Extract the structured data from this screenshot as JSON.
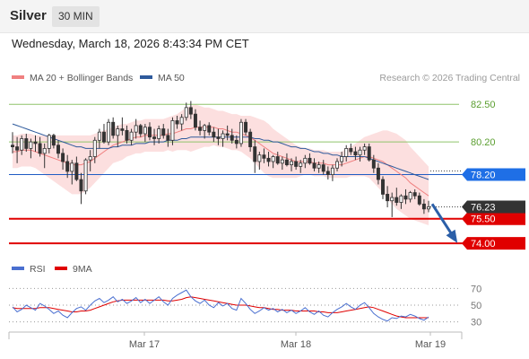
{
  "header": {
    "symbol": "Silver",
    "timeframe": "30 MIN",
    "datetime": "Wednesday, March 18, 2026 8:43:34 PM CET"
  },
  "chart_data": {
    "type": "candlestick",
    "legend": [
      {
        "name": "MA 20 + Bollinger Bands",
        "color": "#f08080"
      },
      {
        "name": "MA 50",
        "color": "#2e5a9c"
      }
    ],
    "source_text": "Research © 2026 Trading Central",
    "ylim": [
      73.4,
      83.5
    ],
    "x_labels": [
      "Mar 17",
      "Mar 18",
      "Mar 19"
    ],
    "levels": [
      {
        "value": 82.5,
        "label": "82.50",
        "color": "#8fc46a",
        "style": "resistance"
      },
      {
        "value": 80.2,
        "label": "80.20",
        "color": "#8fc46a",
        "style": "resistance"
      },
      {
        "value": 78.2,
        "label": "78.20",
        "color": "#1f5cc4",
        "style": "pivot"
      },
      {
        "value": 75.5,
        "label": "75.50",
        "color": "#e00000",
        "style": "support"
      },
      {
        "value": 74.0,
        "label": "74.00",
        "color": "#e00000",
        "style": "support"
      }
    ],
    "last_price": {
      "value": 76.23,
      "label": "76.23"
    },
    "arrow": {
      "from": 76.4,
      "to": 74.2,
      "direction": "down"
    },
    "candles": [
      [
        80,
        80.8,
        79.5,
        79.9
      ],
      [
        79.9,
        80.5,
        78.9,
        79.7
      ],
      [
        79.7,
        80.6,
        79.4,
        80.4
      ],
      [
        80.4,
        80.7,
        79.6,
        79.8
      ],
      [
        79.8,
        80.4,
        79.2,
        80.2
      ],
      [
        80.2,
        80.6,
        79.6,
        80.1
      ],
      [
        80.1,
        80.5,
        79.3,
        79.5
      ],
      [
        79.5,
        80.1,
        78.6,
        79.8
      ],
      [
        79.8,
        80.7,
        79.5,
        80.6
      ],
      [
        80.6,
        80.7,
        79.8,
        80.0
      ],
      [
        80.0,
        80.3,
        79.2,
        79.5
      ],
      [
        79.5,
        79.8,
        78.5,
        79.0
      ],
      [
        79,
        79.4,
        78.0,
        78.4
      ],
      [
        78.4,
        79.1,
        77.6,
        78.9
      ],
      [
        78.9,
        79.3,
        77.8,
        77.9
      ],
      [
        77.9,
        78.3,
        76.4,
        77.2
      ],
      [
        77.2,
        79.2,
        77.0,
        79.1
      ],
      [
        79.1,
        79.7,
        78.4,
        79.3
      ],
      [
        79.3,
        80.5,
        78.9,
        80.3
      ],
      [
        80.3,
        81.0,
        79.8,
        80.8
      ],
      [
        80.8,
        81.3,
        80.1,
        80.2
      ],
      [
        80.2,
        81.6,
        80.0,
        81.4
      ],
      [
        81.4,
        81.7,
        80.4,
        80.6
      ],
      [
        80.6,
        81.2,
        79.9,
        81.0
      ],
      [
        81.0,
        81.7,
        80.6,
        80.9
      ],
      [
        80.9,
        81.2,
        80.1,
        80.3
      ],
      [
        80.3,
        81.0,
        80.0,
        80.8
      ],
      [
        80.8,
        81.6,
        80.4,
        81.2
      ],
      [
        81.2,
        81.3,
        80.5,
        80.7
      ],
      [
        80.7,
        81.3,
        80.2,
        81.1
      ],
      [
        81.1,
        81.4,
        80.3,
        80.5
      ],
      [
        80.5,
        81.0,
        80.0,
        80.4
      ],
      [
        80.4,
        81.2,
        80.1,
        81.0
      ],
      [
        81.0,
        81.3,
        80.4,
        80.6
      ],
      [
        80.6,
        81.0,
        79.9,
        80.3
      ],
      [
        80.3,
        81.7,
        80.0,
        81.5
      ],
      [
        81.5,
        81.8,
        81.0,
        81.3
      ],
      [
        81.3,
        81.9,
        80.9,
        81.7
      ],
      [
        81.7,
        82.6,
        81.5,
        82.3
      ],
      [
        82.3,
        82.7,
        81.6,
        81.9
      ],
      [
        81.9,
        82.2,
        80.9,
        81.1
      ],
      [
        81.1,
        81.5,
        80.6,
        80.9
      ],
      [
        80.9,
        81.3,
        80.4,
        81.2
      ],
      [
        81.2,
        81.4,
        80.6,
        80.8
      ],
      [
        80.8,
        81.1,
        80.2,
        80.5
      ],
      [
        80.5,
        81.0,
        80.0,
        80.4
      ],
      [
        80.4,
        80.9,
        79.9,
        80.7
      ],
      [
        80.7,
        81.2,
        80.3,
        80.6
      ],
      [
        80.6,
        81.0,
        80.1,
        80.3
      ],
      [
        80.3,
        80.6,
        79.8,
        80.1
      ],
      [
        80.1,
        81.6,
        79.9,
        81.4
      ],
      [
        81.4,
        81.6,
        80.6,
        80.8
      ],
      [
        80.8,
        81.0,
        79.6,
        79.9
      ],
      [
        79.9,
        80.3,
        78.3,
        79.0
      ],
      [
        79.0,
        79.6,
        78.5,
        79.4
      ],
      [
        79.4,
        79.8,
        78.9,
        79.2
      ],
      [
        79.2,
        79.6,
        78.7,
        79.0
      ],
      [
        79,
        79.4,
        78.6,
        79.3
      ],
      [
        79.3,
        79.6,
        78.8,
        78.9
      ],
      [
        78.9,
        79.3,
        78.5,
        79.1
      ],
      [
        79.1,
        79.5,
        78.7,
        78.8
      ],
      [
        78.8,
        79.2,
        78.4,
        79.0
      ],
      [
        79.0,
        79.3,
        78.5,
        78.7
      ],
      [
        78.7,
        79.1,
        78.3,
        78.9
      ],
      [
        78.9,
        79.4,
        78.6,
        79.2
      ],
      [
        79.2,
        79.5,
        78.8,
        78.9
      ],
      [
        78.9,
        79.2,
        78.4,
        78.6
      ],
      [
        78.6,
        79.0,
        78.3,
        78.8
      ],
      [
        78.8,
        79.1,
        78.2,
        78.4
      ],
      [
        78.4,
        78.7,
        77.9,
        78.2
      ],
      [
        78.2,
        78.8,
        77.8,
        78.6
      ],
      [
        78.6,
        79.2,
        78.4,
        79.0
      ],
      [
        79,
        79.6,
        78.7,
        79.3
      ],
      [
        79.3,
        80.0,
        79.0,
        79.8
      ],
      [
        79.8,
        80.1,
        79.4,
        79.6
      ],
      [
        79.6,
        79.9,
        79.1,
        79.4
      ],
      [
        79.4,
        79.9,
        79.0,
        79.7
      ],
      [
        79.7,
        80.1,
        79.4,
        79.9
      ],
      [
        79.9,
        80.1,
        79.0,
        79.1
      ],
      [
        79.1,
        79.4,
        78.3,
        78.6
      ],
      [
        78.6,
        78.9,
        77.6,
        77.9
      ],
      [
        77.9,
        78.1,
        76.7,
        77.0
      ],
      [
        77.0,
        77.5,
        76.2,
        76.6
      ],
      [
        76.6,
        77.1,
        75.6,
        76.8
      ],
      [
        76.8,
        77.4,
        76.3,
        76.5
      ],
      [
        76.5,
        77.0,
        76.1,
        76.9
      ],
      [
        76.9,
        77.3,
        76.4,
        76.7
      ],
      [
        76.7,
        77.2,
        76.5,
        77.1
      ],
      [
        77.1,
        77.3,
        76.7,
        76.9
      ],
      [
        76.9,
        77.1,
        76.3,
        76.4
      ],
      [
        76.4,
        76.7,
        75.8,
        76.1
      ],
      [
        76.1,
        76.6,
        75.9,
        76.23
      ]
    ],
    "ma20": [
      79.6,
      79.6,
      79.7,
      79.7,
      79.7,
      79.6,
      79.5,
      79.4,
      79.3,
      79.2,
      79.1,
      79.0,
      78.9,
      78.8,
      78.8,
      78.8,
      78.9,
      79.0,
      79.2,
      79.4,
      79.6,
      79.8,
      80.0,
      80.1,
      80.2,
      80.3,
      80.4,
      80.5,
      80.5,
      80.6,
      80.6,
      80.6,
      80.6,
      80.6,
      80.7,
      80.7,
      80.8,
      80.9,
      81.0,
      81.0,
      81.1,
      81.1,
      81.1,
      81.1,
      81.1,
      81.0,
      81.0,
      80.9,
      80.8,
      80.8,
      80.7,
      80.6,
      80.5,
      80.3,
      80.1,
      79.9,
      79.7,
      79.5,
      79.4,
      79.3,
      79.2,
      79.1,
      79.0,
      79.0,
      79.0,
      79.0,
      78.9,
      78.9,
      78.9,
      78.8,
      78.8,
      78.8,
      78.8,
      78.9,
      79.0,
      79.1,
      79.2,
      79.3,
      79.3,
      79.2,
      79.1,
      79.0,
      78.8,
      78.6,
      78.4,
      78.2,
      78.0,
      77.7,
      77.5,
      77.3,
      77.1,
      76.9
    ],
    "ma50": [
      81.3,
      81.2,
      81.1,
      81.0,
      80.9,
      80.8,
      80.7,
      80.6,
      80.5,
      80.4,
      80.3,
      80.2,
      80.1,
      80.0,
      79.9,
      79.9,
      79.8,
      79.8,
      79.8,
      79.8,
      79.8,
      79.8,
      79.9,
      79.9,
      80.0,
      80.0,
      80.0,
      80.1,
      80.1,
      80.1,
      80.2,
      80.2,
      80.2,
      80.2,
      80.3,
      80.3,
      80.3,
      80.4,
      80.4,
      80.5,
      80.5,
      80.5,
      80.5,
      80.5,
      80.5,
      80.5,
      80.5,
      80.5,
      80.5,
      80.5,
      80.5,
      80.5,
      80.5,
      80.4,
      80.4,
      80.3,
      80.3,
      80.2,
      80.2,
      80.1,
      80.0,
      79.9,
      79.9,
      79.8,
      79.8,
      79.7,
      79.6,
      79.6,
      79.5,
      79.5,
      79.4,
      79.4,
      79.3,
      79.3,
      79.3,
      79.3,
      79.3,
      79.3,
      79.2,
      79.1,
      79.0,
      78.9,
      78.8,
      78.7,
      78.6,
      78.5,
      78.4,
      78.3,
      78.2,
      78.1,
      78.0,
      77.9
    ],
    "bb_width": [
      1.0,
      1.0,
      1.0,
      1.0,
      1.0,
      1.0,
      1.1,
      1.2,
      1.3,
      1.4,
      1.5,
      1.6,
      1.7,
      1.8,
      1.8,
      1.8,
      1.7,
      1.6,
      1.5,
      1.4,
      1.3,
      1.2,
      1.1,
      1.1,
      1.1,
      1.0,
      1.0,
      1.0,
      1.0,
      1.0,
      1.0,
      1.0,
      1.0,
      1.0,
      1.0,
      1.1,
      1.1,
      1.2,
      1.3,
      1.4,
      1.4,
      1.3,
      1.2,
      1.2,
      1.1,
      1.1,
      1.1,
      1.1,
      1.1,
      1.1,
      1.1,
      1.2,
      1.3,
      1.4,
      1.5,
      1.6,
      1.6,
      1.5,
      1.4,
      1.3,
      1.2,
      1.1,
      1.0,
      0.9,
      0.8,
      0.8,
      0.8,
      0.8,
      0.8,
      0.8,
      0.8,
      0.8,
      0.8,
      0.9,
      0.9,
      1.0,
      1.1,
      1.2,
      1.3,
      1.5,
      1.7,
      1.9,
      2.1,
      2.2,
      2.3,
      2.3,
      2.3,
      2.2,
      2.1,
      2.0,
      1.9,
      1.8
    ]
  },
  "rsi_panel": {
    "legend": [
      {
        "name": "RSI",
        "color": "#4a6fd0"
      },
      {
        "name": "9MA",
        "color": "#e00000"
      }
    ],
    "ylim": [
      20,
      80
    ],
    "levels": [
      {
        "value": 70,
        "label": "70"
      },
      {
        "value": 50,
        "label": "50"
      },
      {
        "value": 30,
        "label": "30"
      }
    ],
    "rsi": [
      48,
      42,
      45,
      50,
      47,
      44,
      52,
      49,
      45,
      40,
      43,
      38,
      35,
      41,
      46,
      48,
      44,
      50,
      55,
      58,
      53,
      56,
      60,
      54,
      57,
      52,
      55,
      59,
      53,
      57,
      52,
      56,
      60,
      54,
      50,
      58,
      62,
      65,
      68,
      60,
      55,
      52,
      56,
      50,
      47,
      53,
      49,
      52,
      46,
      44,
      58,
      52,
      45,
      40,
      43,
      47,
      44,
      46,
      42,
      45,
      41,
      44,
      40,
      43,
      47,
      42,
      39,
      43,
      38,
      36,
      41,
      45,
      48,
      52,
      48,
      45,
      50,
      53,
      47,
      40,
      36,
      33,
      31,
      35,
      34,
      37,
      36,
      39,
      37,
      34,
      32,
      36
    ],
    "ma9": [
      47,
      46,
      46,
      46,
      46,
      46,
      47,
      47,
      47,
      46,
      45,
      44,
      43,
      42,
      42,
      43,
      43,
      44,
      46,
      48,
      50,
      52,
      54,
      55,
      56,
      56,
      56,
      56,
      56,
      56,
      56,
      56,
      56,
      56,
      55,
      55,
      56,
      57,
      59,
      60,
      59,
      58,
      57,
      56,
      55,
      54,
      53,
      52,
      51,
      50,
      50,
      50,
      49,
      48,
      47,
      47,
      46,
      45,
      45,
      44,
      44,
      44,
      43,
      43,
      43,
      43,
      43,
      42,
      42,
      41,
      41,
      41,
      42,
      43,
      44,
      45,
      46,
      47,
      48,
      47,
      45,
      43,
      41,
      39,
      37,
      36,
      35,
      35,
      35,
      35,
      35,
      35
    ]
  }
}
